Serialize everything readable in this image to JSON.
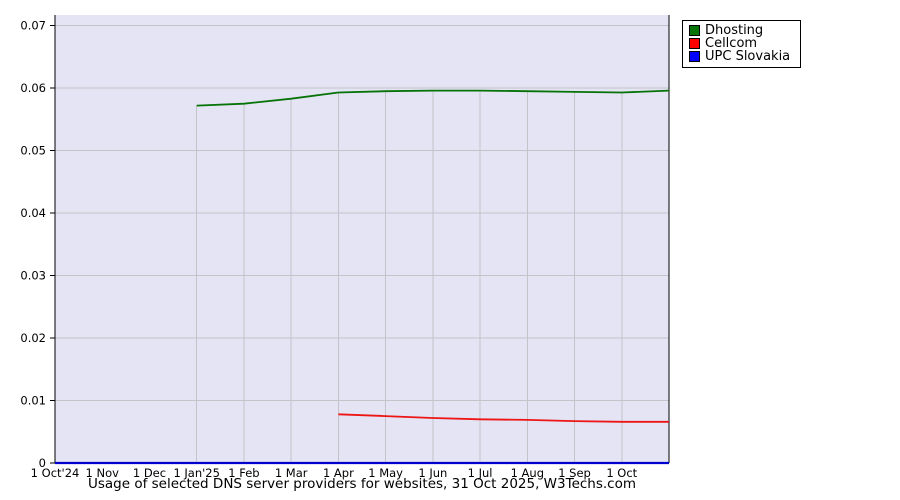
{
  "caption": "Usage of selected DNS server providers for websites, 31 Oct 2025, W3Techs.com",
  "legend": {
    "items": [
      {
        "label": "Dhosting",
        "color": "#067306"
      },
      {
        "label": "Cellcom",
        "color": "#ff0000"
      },
      {
        "label": "UPC Slovakia",
        "color": "#0000ff"
      }
    ]
  },
  "chart_data": {
    "type": "line",
    "title": "Usage of selected DNS server providers for websites, 31 Oct 2025, W3Techs.com",
    "legend_position": "top-right",
    "grid": true,
    "x_axis": {
      "start": "1 Oct 2024",
      "end": "31 Oct 2025",
      "range_months": 13,
      "tick_labels": [
        "1 Oct'24",
        "1 Nov",
        "1 Dec",
        "1 Jan'25",
        "1 Feb",
        "1 Mar",
        "1 Apr",
        "1 May",
        "1 Jun",
        "1 Jul",
        "1 Aug",
        "1 Sep",
        "1 Oct"
      ]
    },
    "y_axis": {
      "tick_values": [
        0,
        0.01,
        0.02,
        0.03,
        0.04,
        0.05,
        0.06,
        0.07
      ],
      "tick_labels": [
        "0",
        "0.01",
        "0.02",
        "0.03",
        "0.04",
        "0.05",
        "0.06",
        "0.07"
      ],
      "max": 0.0717
    },
    "colors": {
      "plot_bg": "#e4e4f5",
      "grid": "#c3c3c9",
      "axis": "#000000"
    },
    "series": [
      {
        "name": "UPC Slovakia",
        "color": "#0000cc",
        "width": 2.2,
        "points": [
          {
            "date": "1 Oct'24",
            "xi": 0,
            "value": 0
          },
          {
            "date": "31 Oct'25",
            "xi": 13,
            "value": 0
          }
        ]
      },
      {
        "name": "Cellcom",
        "color": "#ee1515",
        "width": 1.8,
        "points": [
          {
            "date": "1 Apr",
            "xi": 6,
            "value": 0.0078
          },
          {
            "date": "1 May",
            "xi": 7,
            "value": 0.0075
          },
          {
            "date": "1 Jun",
            "xi": 8,
            "value": 0.0072
          },
          {
            "date": "1 Jul",
            "xi": 9,
            "value": 0.007
          },
          {
            "date": "1 Aug",
            "xi": 10,
            "value": 0.0069
          },
          {
            "date": "1 Sep",
            "xi": 11,
            "value": 0.0067
          },
          {
            "date": "1 Oct",
            "xi": 12,
            "value": 0.0066
          },
          {
            "date": "31 Oct",
            "xi": 13,
            "value": 0.0066
          }
        ]
      },
      {
        "name": "Dhosting",
        "color": "#067306",
        "width": 1.8,
        "drop_lines": true,
        "points": [
          {
            "date": "1 Jan'25",
            "xi": 3,
            "value": 0.0572
          },
          {
            "date": "1 Feb",
            "xi": 4,
            "value": 0.0575
          },
          {
            "date": "1 Mar",
            "xi": 5,
            "value": 0.0583
          },
          {
            "date": "1 Apr",
            "xi": 6,
            "value": 0.0593
          },
          {
            "date": "1 May",
            "xi": 7,
            "value": 0.0595
          },
          {
            "date": "1 Jun",
            "xi": 8,
            "value": 0.0596
          },
          {
            "date": "1 Jul",
            "xi": 9,
            "value": 0.0596
          },
          {
            "date": "1 Aug",
            "xi": 10,
            "value": 0.0595
          },
          {
            "date": "1 Sep",
            "xi": 11,
            "value": 0.0594
          },
          {
            "date": "1 Oct",
            "xi": 12,
            "value": 0.0593
          },
          {
            "date": "31 Oct",
            "xi": 13,
            "value": 0.0596
          }
        ]
      }
    ]
  }
}
